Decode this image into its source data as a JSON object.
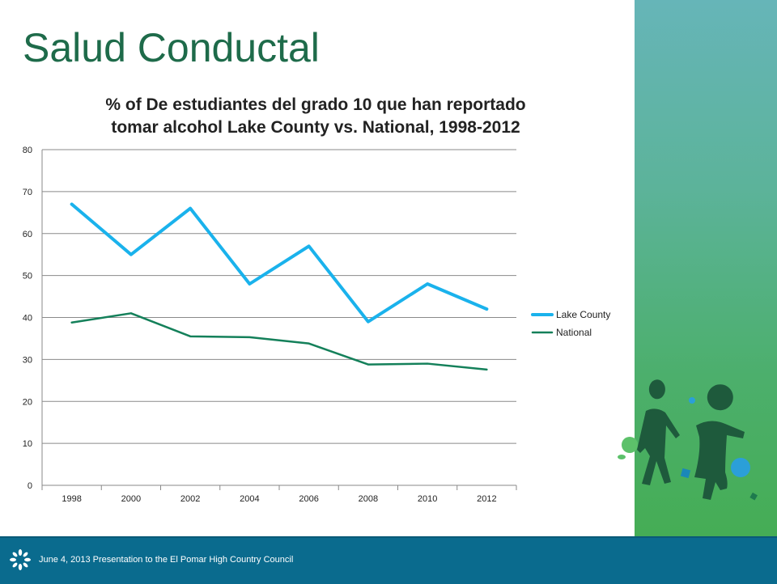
{
  "slide": {
    "title": "Salud Conductal"
  },
  "footer": {
    "text": "June 4, 2013 Presentation to the El Pomar High Country Council"
  },
  "decoration": {
    "footer_logo_icon": "asterisk-flower-icon",
    "artwork": "children-silhouettes-illustration"
  },
  "colors": {
    "title": "#1e6b4a",
    "footer": "#0a6b8e",
    "side_panel_top": "#66b5b8",
    "side_panel_bottom": "#45ad55"
  },
  "chart_data": {
    "type": "line",
    "title": "% of De estudiantes del grado 10 que han reportado tomar alcohol Lake County vs. National, 1998-2012",
    "title_lines": [
      "% of De estudiantes del grado 10 que han reportado",
      "tomar alcohol Lake County vs. National, 1998-2012"
    ],
    "xlabel": "",
    "ylabel": "",
    "categories": [
      "1998",
      "2000",
      "2002",
      "2004",
      "2006",
      "2008",
      "2010",
      "2012"
    ],
    "ylim": [
      0,
      80
    ],
    "yticks": [
      0,
      10,
      20,
      30,
      40,
      50,
      60,
      70,
      80
    ],
    "grid": true,
    "legend_position": "right",
    "series": [
      {
        "name": "Lake County",
        "color": "#1ab2ec",
        "values": [
          67,
          55,
          66,
          48,
          57,
          39,
          48,
          42
        ]
      },
      {
        "name": "National",
        "color": "#14805a",
        "values": [
          38.8,
          41,
          35.5,
          35.3,
          33.8,
          28.8,
          29,
          27.6
        ]
      }
    ]
  }
}
